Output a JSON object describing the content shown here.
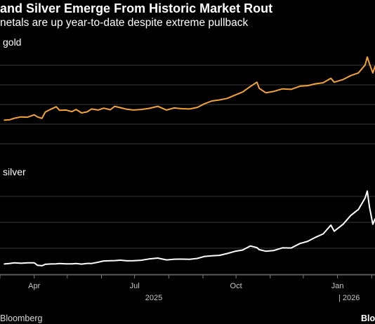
{
  "header": {
    "title": "and Silver Emerge From Historic Market Rout",
    "subtitle": "netals are up year-to-date despite extreme pullback"
  },
  "footer": {
    "source": "Bloomberg",
    "brand": "Blo"
  },
  "colors": {
    "background": "#000000",
    "gold_line": "#f2a33a",
    "silver_line": "#ffffff",
    "grid": "#3a3a3a"
  },
  "chart_data": [
    {
      "type": "line",
      "panel": "top",
      "series": [
        {
          "name": "gold",
          "x": [
            "2025-03-05",
            "2025-03-10",
            "2025-03-14",
            "2025-03-20",
            "2025-03-26",
            "2025-04-01",
            "2025-04-04",
            "2025-04-08",
            "2025-04-11",
            "2025-04-16",
            "2025-04-21",
            "2025-04-24",
            "2025-04-30",
            "2025-05-05",
            "2025-05-09",
            "2025-05-14",
            "2025-05-19",
            "2025-05-23",
            "2025-05-29",
            "2025-06-03",
            "2025-06-09",
            "2025-06-13",
            "2025-06-18",
            "2025-06-24",
            "2025-06-30",
            "2025-07-07",
            "2025-07-14",
            "2025-07-22",
            "2025-07-30",
            "2025-08-06",
            "2025-08-13",
            "2025-08-20",
            "2025-08-27",
            "2025-09-02",
            "2025-09-09",
            "2025-09-16",
            "2025-09-23",
            "2025-09-30",
            "2025-10-07",
            "2025-10-14",
            "2025-10-20",
            "2025-10-22",
            "2025-10-28",
            "2025-11-04",
            "2025-11-12",
            "2025-11-20",
            "2025-11-28",
            "2025-12-05",
            "2025-12-12",
            "2025-12-19",
            "2025-12-26",
            "2025-12-29",
            "2026-01-06",
            "2026-01-13",
            "2026-01-20",
            "2026-01-26",
            "2026-01-28",
            "2026-01-30",
            "2026-02-02",
            "2026-02-04"
          ],
          "values": [
            2920,
            2935,
            2990,
            3040,
            3030,
            3120,
            3040,
            2985,
            3220,
            3330,
            3425,
            3290,
            3300,
            3240,
            3320,
            3190,
            3230,
            3340,
            3300,
            3370,
            3310,
            3440,
            3390,
            3330,
            3300,
            3320,
            3360,
            3440,
            3300,
            3380,
            3350,
            3340,
            3400,
            3530,
            3640,
            3680,
            3740,
            3860,
            3980,
            4190,
            4350,
            4120,
            3950,
            4000,
            4100,
            4080,
            4200,
            4220,
            4290,
            4330,
            4500,
            4350,
            4450,
            4600,
            4700,
            5000,
            5300,
            5050,
            4700,
            4950
          ]
        }
      ],
      "ylim": [
        2000,
        5600
      ]
    },
    {
      "type": "line",
      "panel": "bottom",
      "series": [
        {
          "name": "silver",
          "x": [
            "2025-03-05",
            "2025-03-10",
            "2025-03-14",
            "2025-03-20",
            "2025-03-26",
            "2025-04-01",
            "2025-04-04",
            "2025-04-08",
            "2025-04-11",
            "2025-04-16",
            "2025-04-21",
            "2025-04-24",
            "2025-04-30",
            "2025-05-05",
            "2025-05-09",
            "2025-05-14",
            "2025-05-19",
            "2025-05-23",
            "2025-05-29",
            "2025-06-03",
            "2025-06-09",
            "2025-06-13",
            "2025-06-18",
            "2025-06-24",
            "2025-06-30",
            "2025-07-07",
            "2025-07-14",
            "2025-07-22",
            "2025-07-30",
            "2025-08-06",
            "2025-08-13",
            "2025-08-20",
            "2025-08-27",
            "2025-09-02",
            "2025-09-09",
            "2025-09-16",
            "2025-09-23",
            "2025-09-30",
            "2025-10-07",
            "2025-10-14",
            "2025-10-20",
            "2025-10-22",
            "2025-10-28",
            "2025-11-04",
            "2025-11-12",
            "2025-11-20",
            "2025-11-28",
            "2025-12-05",
            "2025-12-12",
            "2025-12-19",
            "2025-12-26",
            "2025-12-29",
            "2026-01-06",
            "2026-01-13",
            "2026-01-20",
            "2026-01-26",
            "2026-01-28",
            "2026-01-30",
            "2026-02-02",
            "2026-02-04"
          ],
          "values": [
            32.5,
            33.2,
            33.8,
            33.3,
            33.8,
            33.9,
            31.0,
            30.5,
            32.1,
            32.5,
            32.6,
            33.0,
            32.6,
            32.7,
            33.0,
            32.4,
            33.2,
            33.1,
            34.5,
            36.0,
            36.2,
            36.4,
            36.9,
            36.1,
            36.2,
            36.8,
            38.2,
            39.3,
            37.2,
            38.0,
            38.1,
            37.9,
            38.9,
            41.0,
            41.9,
            42.4,
            44.5,
            47.0,
            48.5,
            53.2,
            51.2,
            48.9,
            47.1,
            47.9,
            51.0,
            50.8,
            56.0,
            58.5,
            63.0,
            67.0,
            77.0,
            70.0,
            78.0,
            88.0,
            95.0,
            108.0,
            116.0,
            98.0,
            78.0,
            84.0
          ]
        }
      ],
      "ylim": [
        20,
        130
      ]
    }
  ],
  "axis": {
    "x_ticks": [
      "Apr",
      "Jul",
      "Oct",
      "Jan"
    ],
    "x_tick_dates": [
      "2025-04-01",
      "2025-07-01",
      "2025-10-01",
      "2026-01-01"
    ],
    "year_labels": [
      "2025",
      "| 2026"
    ],
    "xlim": [
      "2025-03-01",
      "2026-02-04"
    ]
  }
}
